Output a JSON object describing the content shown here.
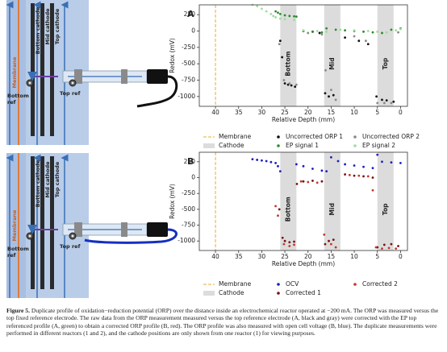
{
  "diagrams": [
    {
      "membrane": "Membrane",
      "cathodes": [
        "Bottom cathode",
        "Mid cathode",
        "Top cathode"
      ],
      "bottom_ref": [
        "Bottom",
        "ref"
      ],
      "top_ref": "Top ref"
    },
    {
      "membrane": "Membrane",
      "cathodes": [
        "Bottom cathode",
        "Mid cathode",
        "Top cathode"
      ],
      "bottom_ref": [
        "Bottom",
        "ref"
      ],
      "top_ref": "Top ref"
    }
  ],
  "chart_data": [
    {
      "type": "scatter",
      "panel": "A",
      "xlabel": "Relative Depth (mm)",
      "ylabel": "Redox (mV)",
      "xlim": [
        43.5,
        -1.5
      ],
      "ylim": [
        -1150,
        400
      ],
      "xticks": [
        40,
        35,
        30,
        25,
        20,
        15,
        10,
        5,
        0
      ],
      "yticks": [
        250,
        0,
        -250,
        -500,
        -750,
        -1000
      ],
      "membrane": {
        "name": "Membrane",
        "x": 40,
        "color": "#f0a830"
      },
      "cathode": {
        "name": "Cathode",
        "labels": [
          "Bottom",
          "Mid",
          "Top"
        ],
        "spans": [
          [
            26,
            22.5
          ],
          [
            16.5,
            13
          ],
          [
            5,
            1.5
          ]
        ],
        "color": "#dcdcdc"
      },
      "series": [
        {
          "name": "Uncorrected ORP 1",
          "color": "#111111",
          "x": [
            26,
            25.6,
            25,
            24.3,
            23.6,
            22.8,
            21,
            19,
            17.5,
            16.3,
            15.5,
            14.5,
            12,
            9,
            7,
            5.2,
            4,
            3,
            1.5
          ],
          "y": [
            -150,
            -400,
            -800,
            -820,
            -830,
            -850,
            0,
            -10,
            -30,
            -950,
            -1000,
            -980,
            -100,
            -150,
            -200,
            -1000,
            -1050,
            -1060,
            -1080
          ]
        },
        {
          "name": "EP signal 1",
          "color": "#2e8b2e",
          "x": [
            27,
            26.5,
            26,
            25,
            24,
            23,
            22.5,
            21,
            19,
            17,
            16,
            14,
            12,
            10,
            8,
            6,
            4,
            2,
            0
          ],
          "y": [
            300,
            280,
            260,
            240,
            230,
            225,
            220,
            0,
            -10,
            -20,
            40,
            20,
            10,
            0,
            -10,
            -20,
            -30,
            20,
            40
          ]
        },
        {
          "name": "Uncorrected ORP 2",
          "color": "#888888",
          "x": [
            26.2,
            25.2,
            24,
            22.5,
            20,
            17,
            16.2,
            15,
            14,
            10,
            7.5,
            5,
            3.5,
            2,
            0.5
          ],
          "y": [
            -200,
            -750,
            -800,
            -820,
            -30,
            -50,
            -600,
            -900,
            -1050,
            -80,
            -150,
            -1100,
            -1100,
            -1100,
            -20
          ]
        },
        {
          "name": "EP signal 2",
          "color": "#9edc9e",
          "x": [
            32,
            31,
            30,
            29,
            28,
            27.5,
            27,
            26,
            25,
            23,
            21,
            18,
            16,
            13,
            10,
            7,
            5,
            3,
            1,
            0
          ],
          "y": [
            400,
            380,
            340,
            300,
            260,
            230,
            210,
            190,
            180,
            170,
            10,
            0,
            -10,
            20,
            10,
            0,
            -10,
            -20,
            10,
            30
          ]
        }
      ]
    },
    {
      "type": "scatter",
      "panel": "B",
      "xlabel": "Relative Depth (mm)",
      "ylabel": "Redox (mV)",
      "xlim": [
        43.5,
        -1.5
      ],
      "ylim": [
        -1150,
        400
      ],
      "xticks": [
        40,
        35,
        30,
        25,
        20,
        15,
        10,
        5,
        0
      ],
      "yticks": [
        250,
        0,
        -250,
        -500,
        -750,
        -1000
      ],
      "membrane": {
        "name": "Membrane",
        "x": 40,
        "color": "#f0a830"
      },
      "cathode": {
        "name": "Cathode",
        "labels": [
          "Bottom",
          "Mid",
          "Top"
        ],
        "spans": [
          [
            26,
            22.5
          ],
          [
            16.5,
            13
          ],
          [
            5,
            1.5
          ]
        ],
        "color": "#dcdcdc"
      },
      "series": [
        {
          "name": "OCV",
          "color": "#1f1fbf",
          "x": [
            32,
            31,
            30,
            29,
            28,
            27,
            26.5,
            26,
            22.5,
            21,
            19,
            17,
            16,
            15,
            13.5,
            12,
            10,
            8,
            6,
            5,
            4,
            2,
            0
          ],
          "y": [
            290,
            280,
            270,
            260,
            245,
            230,
            180,
            100,
            210,
            180,
            140,
            110,
            100,
            320,
            260,
            210,
            190,
            170,
            150,
            360,
            250,
            240,
            230
          ]
        },
        {
          "name": "Corrected 1",
          "color": "#7b1010",
          "x": [
            26.2,
            25.5,
            25,
            24,
            23,
            22.4,
            21,
            19,
            17,
            16.3,
            15.5,
            14.5,
            12,
            10,
            8,
            6,
            5,
            3.5,
            2,
            0.5
          ],
          "y": [
            -500,
            -950,
            -1000,
            -1020,
            -1010,
            -100,
            -60,
            -50,
            -60,
            -1050,
            -1000,
            -980,
            50,
            30,
            20,
            0,
            -1100,
            -1060,
            -1050,
            -1080
          ]
        },
        {
          "name": "Corrected 2",
          "color": "#c0392b",
          "x": [
            27,
            26.5,
            25.2,
            24,
            23,
            21.5,
            20,
            18,
            16.5,
            15,
            14,
            11,
            9,
            7,
            6,
            5.3,
            4,
            2.5,
            1
          ],
          "y": [
            -450,
            -600,
            -1050,
            -1080,
            -1060,
            -60,
            -70,
            -80,
            -900,
            -1050,
            -1100,
            40,
            30,
            20,
            -200,
            -1100,
            -1120,
            -1110,
            -1120
          ]
        }
      ]
    }
  ],
  "caption": {
    "label": "Figure 5.",
    "text": "Duplicate profile of oxidation−reduction potential (ORP) over the distance inside an electrochemical reactor operated at −200 mA. The ORP was measured versus the top fixed reference electrode. The raw data from the ORP measurement measured versus the top reference electrode (A, black and gray) were corrected with the EP top referenced profile (A, green) to obtain a corrected ORP profile (B, red). The ORP profile was also measured with open cell voltage (B, blue). The duplicate measurements were performed in different reactors (1 and 2), and the cathode positions are only shown from one reactor (1) for viewing purposes."
  }
}
